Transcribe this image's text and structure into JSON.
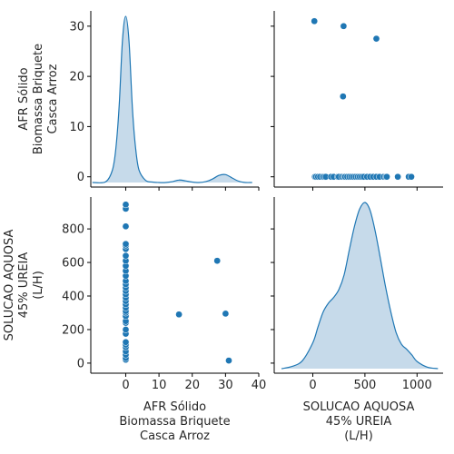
{
  "chart_data": {
    "type": "pairplot",
    "variables": [
      "AFR Sólido\nBiomassa Briquete\nCasca Arroz",
      "SOLUCAO AQUOSA\n45% UREIA\n(L/H)"
    ],
    "colors": {
      "point": "#1f77b4",
      "kde_fill": "#b3cde3",
      "kde_line": "#1f77b4"
    },
    "points": [
      [
        31,
        15
      ],
      [
        30,
        295
      ],
      [
        27.5,
        610
      ],
      [
        16,
        290
      ],
      [
        0,
        20
      ],
      [
        0,
        30
      ],
      [
        0,
        50
      ],
      [
        0,
        70
      ],
      [
        0,
        95
      ],
      [
        0,
        110
      ],
      [
        0,
        125
      ],
      [
        0,
        175
      ],
      [
        0,
        200
      ],
      [
        0,
        240
      ],
      [
        0,
        250
      ],
      [
        0,
        280
      ],
      [
        0,
        300
      ],
      [
        0,
        310
      ],
      [
        0,
        330
      ],
      [
        0,
        350
      ],
      [
        0,
        370
      ],
      [
        0,
        390
      ],
      [
        0,
        410
      ],
      [
        0,
        430
      ],
      [
        0,
        450
      ],
      [
        0,
        470
      ],
      [
        0,
        490
      ],
      [
        0,
        520
      ],
      [
        0,
        550
      ],
      [
        0,
        580
      ],
      [
        0,
        610
      ],
      [
        0,
        640
      ],
      [
        0,
        680
      ],
      [
        0,
        700
      ],
      [
        0,
        710
      ],
      [
        0,
        815
      ],
      [
        0,
        920
      ],
      [
        0,
        945
      ]
    ],
    "kde_var1": {
      "x": [
        -10,
        -6,
        -4,
        -3,
        -2,
        -1,
        0,
        1,
        2,
        3,
        4,
        6,
        8,
        10,
        12,
        14,
        16,
        18,
        20,
        22,
        24,
        26,
        28,
        30,
        32,
        34,
        36,
        38
      ],
      "density": [
        0.0,
        0.002,
        0.03,
        0.08,
        0.18,
        0.34,
        0.4,
        0.34,
        0.18,
        0.08,
        0.03,
        0.005,
        0.001,
        0.0,
        0.0,
        0.002,
        0.006,
        0.004,
        0.001,
        0.0,
        0.002,
        0.008,
        0.017,
        0.019,
        0.011,
        0.003,
        0.0,
        0.0
      ]
    },
    "kde_var2": {
      "x": [
        -300,
        -200,
        -100,
        0,
        50,
        100,
        150,
        200,
        250,
        300,
        350,
        400,
        450,
        500,
        550,
        600,
        650,
        700,
        750,
        800,
        850,
        900,
        950,
        1000,
        1100,
        1200
      ],
      "density": [
        0.0,
        3e-05,
        0.00011,
        0.00036,
        0.00058,
        0.00079,
        0.00091,
        0.00099,
        0.0011,
        0.0013,
        0.00165,
        0.00198,
        0.00222,
        0.00231,
        0.0022,
        0.0019,
        0.00152,
        0.00112,
        0.00078,
        0.0005,
        0.00034,
        0.00027,
        0.00019,
        0.0001,
        2e-05,
        0.0
      ]
    },
    "axes": {
      "var1_range": [
        -10.5,
        40
      ],
      "var1_ticks": [
        0,
        10,
        20,
        30,
        40
      ],
      "var2_range": [
        -60,
        990
      ],
      "var2_ticks": [
        0,
        200,
        400,
        600,
        800
      ],
      "var2_x_range": [
        -370,
        1250
      ],
      "var2_x_ticks": [
        0,
        500,
        1000
      ],
      "diag_var1_range": [
        -1.5,
        31.5
      ],
      "diag_var1_ticks": [
        0,
        10,
        20,
        30
      ]
    },
    "grid": false,
    "legend": "none"
  }
}
